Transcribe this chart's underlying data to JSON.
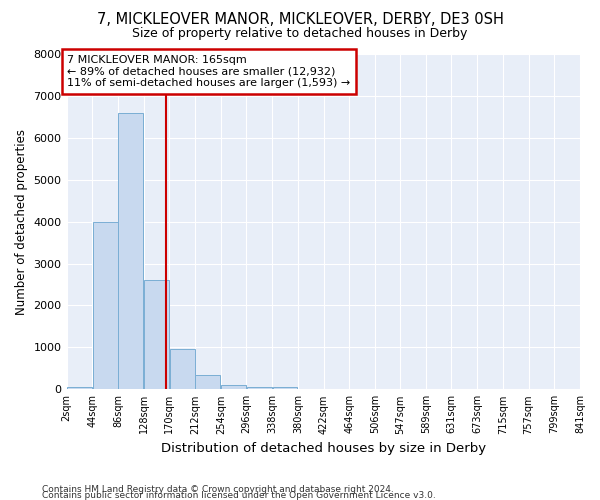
{
  "title1": "7, MICKLEOVER MANOR, MICKLEOVER, DERBY, DE3 0SH",
  "title2": "Size of property relative to detached houses in Derby",
  "xlabel": "Distribution of detached houses by size in Derby",
  "ylabel": "Number of detached properties",
  "footer1": "Contains HM Land Registry data © Crown copyright and database right 2024.",
  "footer2": "Contains public sector information licensed under the Open Government Licence v3.0.",
  "annotation_line1": "7 MICKLEOVER MANOR: 165sqm",
  "annotation_line2": "← 89% of detached houses are smaller (12,932)",
  "annotation_line3": "11% of semi-detached houses are larger (1,593) →",
  "bin_edges": [
    2,
    44,
    86,
    128,
    170,
    212,
    254,
    296,
    338,
    380,
    422,
    464,
    506,
    547,
    589,
    631,
    673,
    715,
    757,
    799,
    841
  ],
  "bar_heights": [
    65,
    4000,
    6600,
    2600,
    950,
    330,
    110,
    60,
    50,
    0,
    0,
    0,
    0,
    0,
    0,
    0,
    0,
    0,
    0,
    0
  ],
  "bar_color": "#c8d9ef",
  "bar_edge_color": "#7aaed4",
  "vline_color": "#cc0000",
  "vline_x": 165,
  "annotation_box_color": "#cc0000",
  "fig_bg": "#ffffff",
  "ax_bg": "#e8eef8",
  "grid_color": "#ffffff",
  "ylim": [
    0,
    8000
  ],
  "yticks": [
    0,
    1000,
    2000,
    3000,
    4000,
    5000,
    6000,
    7000,
    8000
  ]
}
